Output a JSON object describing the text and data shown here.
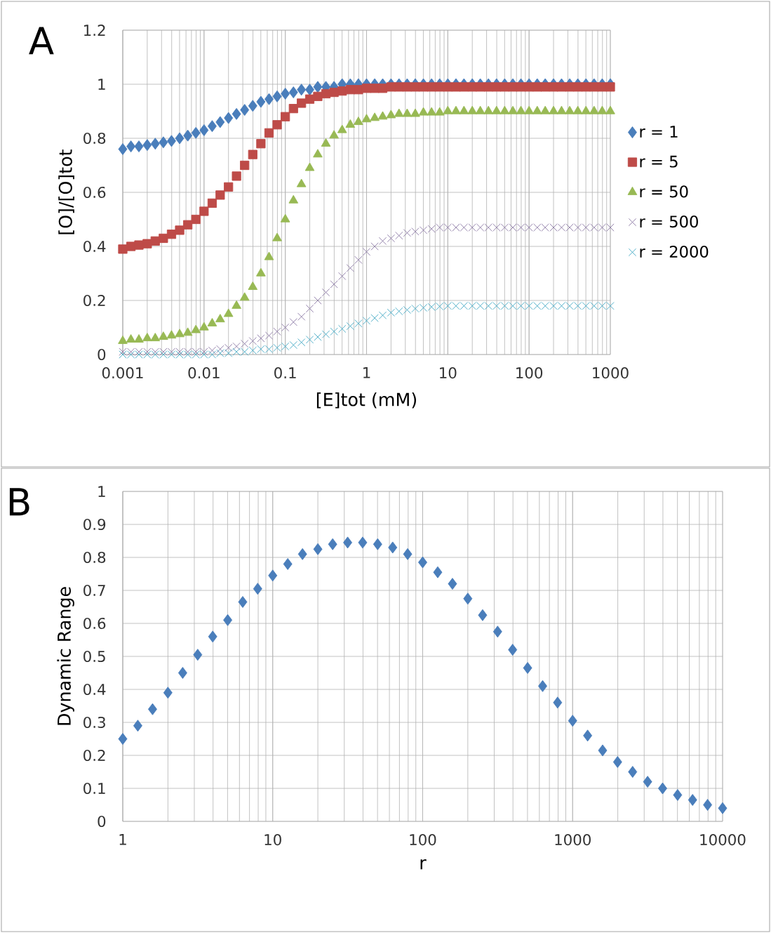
{
  "chart_data": [
    {
      "type": "scatter",
      "xlabel": "[E]tot (mM)",
      "ylabel": "[O]/[O]tot",
      "annotations": [
        "A"
      ],
      "log": "x",
      "grid": true,
      "legend": "right",
      "xlim": [
        0.001,
        1000
      ],
      "ylim": [
        0,
        1.2
      ],
      "xticks": [
        0.001,
        0.01,
        0.1,
        1,
        10,
        100,
        1000
      ],
      "yticks": [
        0,
        0.2,
        0.4,
        0.6,
        0.8,
        1,
        1.2
      ],
      "x": [
        0.001,
        0.00126,
        0.00158,
        0.002,
        0.00251,
        0.00316,
        0.00398,
        0.00501,
        0.00631,
        0.00794,
        0.01,
        0.0126,
        0.0158,
        0.02,
        0.0251,
        0.0316,
        0.0398,
        0.0501,
        0.0631,
        0.0794,
        0.1,
        0.126,
        0.158,
        0.2,
        0.251,
        0.316,
        0.398,
        0.501,
        0.631,
        0.794,
        1,
        1.26,
        1.58,
        2,
        2.51,
        3.16,
        3.98,
        5.01,
        6.31,
        7.94,
        10,
        12.6,
        15.8,
        20,
        25.1,
        31.6,
        39.8,
        50.1,
        63.1,
        79.4,
        100,
        126,
        158,
        200,
        251,
        316,
        398,
        501,
        631,
        794,
        1000
      ],
      "series": [
        {
          "name": "r = 1",
          "color": "#4a7ebb",
          "marker": "diamond",
          "values": [
            0.76,
            0.77,
            0.77,
            0.775,
            0.78,
            0.785,
            0.79,
            0.8,
            0.81,
            0.82,
            0.83,
            0.845,
            0.86,
            0.875,
            0.89,
            0.905,
            0.92,
            0.935,
            0.945,
            0.955,
            0.965,
            0.97,
            0.98,
            0.98,
            0.99,
            0.99,
            0.99,
            1,
            1,
            1,
            1,
            1,
            1,
            1,
            1,
            1,
            1,
            1,
            1,
            1,
            1,
            1,
            1,
            1,
            1,
            1,
            1,
            1,
            1,
            1,
            1,
            1,
            1,
            1,
            1,
            1,
            1,
            1,
            1,
            1,
            1
          ]
        },
        {
          "name": "r = 5",
          "color": "#be4b48",
          "marker": "square",
          "values": [
            0.39,
            0.4,
            0.405,
            0.41,
            0.42,
            0.43,
            0.445,
            0.46,
            0.48,
            0.5,
            0.53,
            0.56,
            0.59,
            0.62,
            0.66,
            0.7,
            0.74,
            0.78,
            0.82,
            0.85,
            0.88,
            0.91,
            0.93,
            0.945,
            0.955,
            0.965,
            0.97,
            0.975,
            0.98,
            0.98,
            0.985,
            0.985,
            0.985,
            0.99,
            0.99,
            0.99,
            0.99,
            0.99,
            0.99,
            0.99,
            0.99,
            0.99,
            0.99,
            0.99,
            0.99,
            0.99,
            0.99,
            0.99,
            0.99,
            0.99,
            0.99,
            0.99,
            0.99,
            0.99,
            0.99,
            0.99,
            0.99,
            0.99,
            0.99,
            0.99,
            0.99
          ]
        },
        {
          "name": "r = 50",
          "color": "#98b954",
          "marker": "triangle",
          "values": [
            0.05,
            0.055,
            0.055,
            0.06,
            0.06,
            0.065,
            0.07,
            0.075,
            0.08,
            0.09,
            0.1,
            0.115,
            0.13,
            0.15,
            0.18,
            0.21,
            0.25,
            0.3,
            0.36,
            0.43,
            0.5,
            0.57,
            0.63,
            0.69,
            0.74,
            0.78,
            0.81,
            0.83,
            0.85,
            0.86,
            0.87,
            0.875,
            0.88,
            0.885,
            0.89,
            0.89,
            0.89,
            0.895,
            0.895,
            0.895,
            0.9,
            0.9,
            0.9,
            0.9,
            0.9,
            0.9,
            0.9,
            0.9,
            0.9,
            0.9,
            0.9,
            0.9,
            0.9,
            0.9,
            0.9,
            0.9,
            0.9,
            0.9,
            0.9,
            0.9,
            0.9
          ]
        },
        {
          "name": "r = 500",
          "color": "#8d7ba6",
          "marker": "cross",
          "values": [
            0.01,
            0.01,
            0.01,
            0.01,
            0.01,
            0.01,
            0.01,
            0.01,
            0.01,
            0.01,
            0.01,
            0.015,
            0.02,
            0.025,
            0.03,
            0.04,
            0.05,
            0.06,
            0.07,
            0.085,
            0.1,
            0.12,
            0.14,
            0.17,
            0.2,
            0.23,
            0.26,
            0.29,
            0.32,
            0.35,
            0.38,
            0.4,
            0.42,
            0.43,
            0.44,
            0.45,
            0.455,
            0.46,
            0.465,
            0.47,
            0.47,
            0.47,
            0.47,
            0.47,
            0.47,
            0.47,
            0.47,
            0.47,
            0.47,
            0.47,
            0.47,
            0.47,
            0.47,
            0.47,
            0.47,
            0.47,
            0.47,
            0.47,
            0.47,
            0.47,
            0.47
          ]
        },
        {
          "name": "r = 2000",
          "color": "#46aac5",
          "marker": "cross",
          "values": [
            0,
            0,
            0,
            0,
            0,
            0,
            0,
            0,
            0,
            0,
            0,
            0,
            0.005,
            0.005,
            0.01,
            0.01,
            0.015,
            0.02,
            0.02,
            0.025,
            0.03,
            0.035,
            0.045,
            0.055,
            0.065,
            0.075,
            0.085,
            0.095,
            0.105,
            0.115,
            0.125,
            0.135,
            0.145,
            0.155,
            0.16,
            0.165,
            0.17,
            0.173,
            0.176,
            0.178,
            0.18,
            0.18,
            0.18,
            0.18,
            0.18,
            0.18,
            0.18,
            0.18,
            0.18,
            0.18,
            0.18,
            0.18,
            0.18,
            0.18,
            0.18,
            0.18,
            0.18,
            0.18,
            0.18,
            0.18,
            0.18
          ]
        }
      ]
    },
    {
      "type": "scatter",
      "xlabel": "r",
      "ylabel": "Dynamic Range",
      "annotations": [
        "B"
      ],
      "log": "x",
      "grid": true,
      "marker": "diamond",
      "xlim": [
        1,
        10000
      ],
      "ylim": [
        0,
        1
      ],
      "xticks": [
        1,
        10,
        100,
        1000,
        10000
      ],
      "yticks": [
        0,
        0.1,
        0.2,
        0.3,
        0.4,
        0.5,
        0.6,
        0.7,
        0.8,
        0.9,
        1
      ],
      "x": [
        1,
        1.26,
        1.58,
        2,
        2.51,
        3.16,
        3.98,
        5.01,
        6.31,
        7.94,
        10,
        12.6,
        15.8,
        20,
        25.1,
        31.6,
        39.8,
        50.1,
        63.1,
        79.4,
        100,
        126,
        158,
        200,
        251,
        316,
        398,
        501,
        631,
        794,
        1000,
        1259,
        1585,
        1995,
        2512,
        3162,
        3981,
        5012,
        6310,
        7943,
        10000
      ],
      "series": [
        {
          "color": "#4a7ebb",
          "values": [
            0.25,
            0.29,
            0.34,
            0.39,
            0.45,
            0.505,
            0.56,
            0.61,
            0.665,
            0.705,
            0.745,
            0.78,
            0.81,
            0.825,
            0.84,
            0.845,
            0.845,
            0.84,
            0.83,
            0.81,
            0.785,
            0.755,
            0.72,
            0.675,
            0.625,
            0.575,
            0.52,
            0.465,
            0.41,
            0.36,
            0.305,
            0.26,
            0.215,
            0.18,
            0.15,
            0.12,
            0.1,
            0.08,
            0.065,
            0.05,
            0.04
          ]
        }
      ]
    }
  ]
}
